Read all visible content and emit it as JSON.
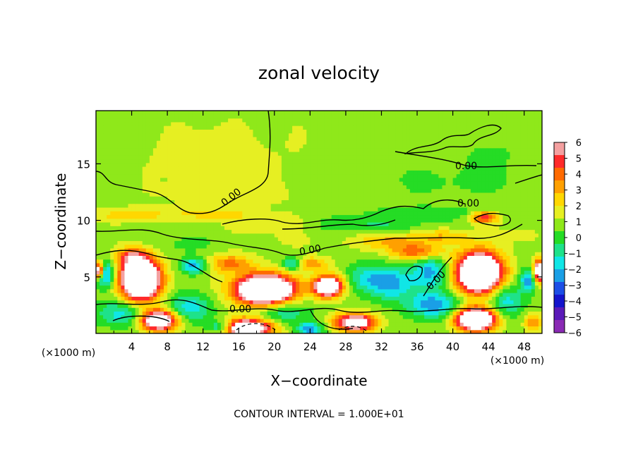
{
  "chart_data": {
    "type": "heatmap",
    "title": "zonal velocity",
    "xlabel": "X−coordinate",
    "ylabel": "Z−coordinate",
    "x_unit_left": "(×1000 m)",
    "x_unit_right": "(×1000 m)",
    "xlim": [
      0,
      50
    ],
    "ylim": [
      0,
      19.7
    ],
    "x_ticks": [
      4,
      8,
      12,
      16,
      20,
      24,
      28,
      32,
      36,
      40,
      44,
      48
    ],
    "y_ticks": [
      5,
      10,
      15
    ],
    "colorbar": {
      "ticks": [
        "6",
        "5",
        "4",
        "3",
        "2",
        "1",
        "0",
        "−1",
        "−2",
        "−3",
        "−4",
        "−5",
        "−6"
      ],
      "colors": [
        "#f4a0a0",
        "#ff2a2a",
        "#ff6a00",
        "#ffa000",
        "#ffd700",
        "#e6ef22",
        "#8fe81a",
        "#25dc25",
        "#1ee28a",
        "#10e6e6",
        "#1a9fe6",
        "#1c4ee6",
        "#1414cc",
        "#5a1ab8",
        "#8a2ab4"
      ],
      "range": [
        -6,
        6
      ]
    },
    "contour_labels": [
      "0.00",
      "0.00",
      "0.00",
      "0.00",
      "0.00",
      "0.00"
    ],
    "footer": "CONTOUR INTERVAL = 1.000E+01",
    "regions": [
      {
        "x": 25,
        "z": 16,
        "v": 0.3,
        "sx": 14,
        "sz": 4
      },
      {
        "x": 12,
        "z": 15.5,
        "v": 0.8,
        "sx": 6,
        "sz": 3
      },
      {
        "x": 33,
        "z": 14,
        "v": -0.7,
        "sx": 6,
        "sz": 2.5
      },
      {
        "x": 44,
        "z": 15.5,
        "v": -0.8,
        "sx": 4,
        "sz": 2.5
      },
      {
        "x": 42,
        "z": 13.3,
        "v": -0.5,
        "sx": 7,
        "sz": 1.2
      },
      {
        "x": 15,
        "z": 12.3,
        "v": 0.6,
        "sx": 8,
        "sz": 1.2
      },
      {
        "x": 4,
        "z": 10.5,
        "v": 2,
        "sx": 4,
        "sz": 0.6
      },
      {
        "x": 13,
        "z": 10.6,
        "v": 1.8,
        "sx": 4,
        "sz": 0.5
      },
      {
        "x": 20,
        "z": 9.8,
        "v": 1.2,
        "sx": 5,
        "sz": 0.8
      },
      {
        "x": 30,
        "z": 9.7,
        "v": -1.6,
        "sx": 7,
        "sz": 0.8
      },
      {
        "x": 38,
        "z": 10.7,
        "v": -1.3,
        "sx": 6,
        "sz": 0.6
      },
      {
        "x": 43.5,
        "z": 10.3,
        "v": 5,
        "sx": 1.5,
        "sz": 0.5
      },
      {
        "x": 10,
        "z": 8,
        "v": -0.8,
        "sx": 4,
        "sz": 1
      },
      {
        "x": 22,
        "z": 8.3,
        "v": 0.4,
        "sx": 6,
        "sz": 1
      },
      {
        "x": 33,
        "z": 8.2,
        "v": 2.5,
        "sx": 3.5,
        "sz": 0.7
      },
      {
        "x": 39,
        "z": 8.6,
        "v": 2.3,
        "sx": 3,
        "sz": 0.7
      },
      {
        "x": 47,
        "z": 8.7,
        "v": 0.6,
        "sx": 3,
        "sz": 1
      },
      {
        "x": 5,
        "z": 4.8,
        "v": 13,
        "sx": 2.2,
        "sz": 1.8
      },
      {
        "x": 4,
        "z": 6.8,
        "v": 3.5,
        "sx": 1.7,
        "sz": 0.8
      },
      {
        "x": 10.5,
        "z": 2.3,
        "v": -3,
        "sx": 2.5,
        "sz": 1.3
      },
      {
        "x": 1,
        "z": 5.3,
        "v": -5,
        "sx": 1,
        "sz": 1.1
      },
      {
        "x": 0.3,
        "z": 5.6,
        "v": 9,
        "sx": 0.6,
        "sz": 0.7
      },
      {
        "x": 3,
        "z": 1.8,
        "v": -3,
        "sx": 3,
        "sz": 1.2
      },
      {
        "x": 7,
        "z": 1.2,
        "v": 10,
        "sx": 2,
        "sz": 0.9
      },
      {
        "x": 11,
        "z": 6,
        "v": -4,
        "sx": 1.5,
        "sz": 0.7
      },
      {
        "x": 15,
        "z": 6.2,
        "v": 3.5,
        "sx": 2.5,
        "sz": 0.8
      },
      {
        "x": 19,
        "z": 3.9,
        "v": 13,
        "sx": 3.3,
        "sz": 1.3
      },
      {
        "x": 17,
        "z": 0.5,
        "v": 10,
        "sx": 2.8,
        "sz": 0.8
      },
      {
        "x": 21,
        "z": 2,
        "v": -2.5,
        "sx": 3,
        "sz": 1.2
      },
      {
        "x": 22,
        "z": 6.2,
        "v": -3.5,
        "sx": 1.2,
        "sz": 0.6
      },
      {
        "x": 26,
        "z": 4.2,
        "v": 10,
        "sx": 1.6,
        "sz": 0.9
      },
      {
        "x": 24,
        "z": 6.2,
        "v": 3,
        "sx": 2,
        "sz": 0.6
      },
      {
        "x": 29,
        "z": 1,
        "v": 8,
        "sx": 2.3,
        "sz": 0.8
      },
      {
        "x": 33,
        "z": 4.5,
        "v": -4,
        "sx": 2.5,
        "sz": 1.5
      },
      {
        "x": 37.5,
        "z": 5.5,
        "v": -3.5,
        "sx": 2,
        "sz": 1.5
      },
      {
        "x": 36,
        "z": 7.2,
        "v": 4,
        "sx": 3,
        "sz": 0.7
      },
      {
        "x": 43,
        "z": 5.4,
        "v": 14,
        "sx": 2.4,
        "sz": 1.7
      },
      {
        "x": 42.5,
        "z": 1.3,
        "v": 12,
        "sx": 2.2,
        "sz": 1
      },
      {
        "x": 38,
        "z": 2.5,
        "v": -4,
        "sx": 3,
        "sz": 1.2
      },
      {
        "x": 46,
        "z": 3,
        "v": -3,
        "sx": 2,
        "sz": 1.5
      },
      {
        "x": 49.7,
        "z": 5.5,
        "v": 9,
        "sx": 0.7,
        "sz": 1
      },
      {
        "x": 49,
        "z": 1,
        "v": 3,
        "sx": 1,
        "sz": 0.8
      },
      {
        "x": 48.5,
        "z": 4.8,
        "v": -4,
        "sx": 1,
        "sz": 1
      },
      {
        "x": 30,
        "z": 5,
        "v": -2,
        "sx": 2,
        "sz": 1.2
      },
      {
        "x": 14,
        "z": 0.6,
        "v": -4,
        "sx": 1.4,
        "sz": 0.6
      },
      {
        "x": 24,
        "z": 0.4,
        "v": -4,
        "sx": 1.5,
        "sz": 0.6
      }
    ]
  }
}
